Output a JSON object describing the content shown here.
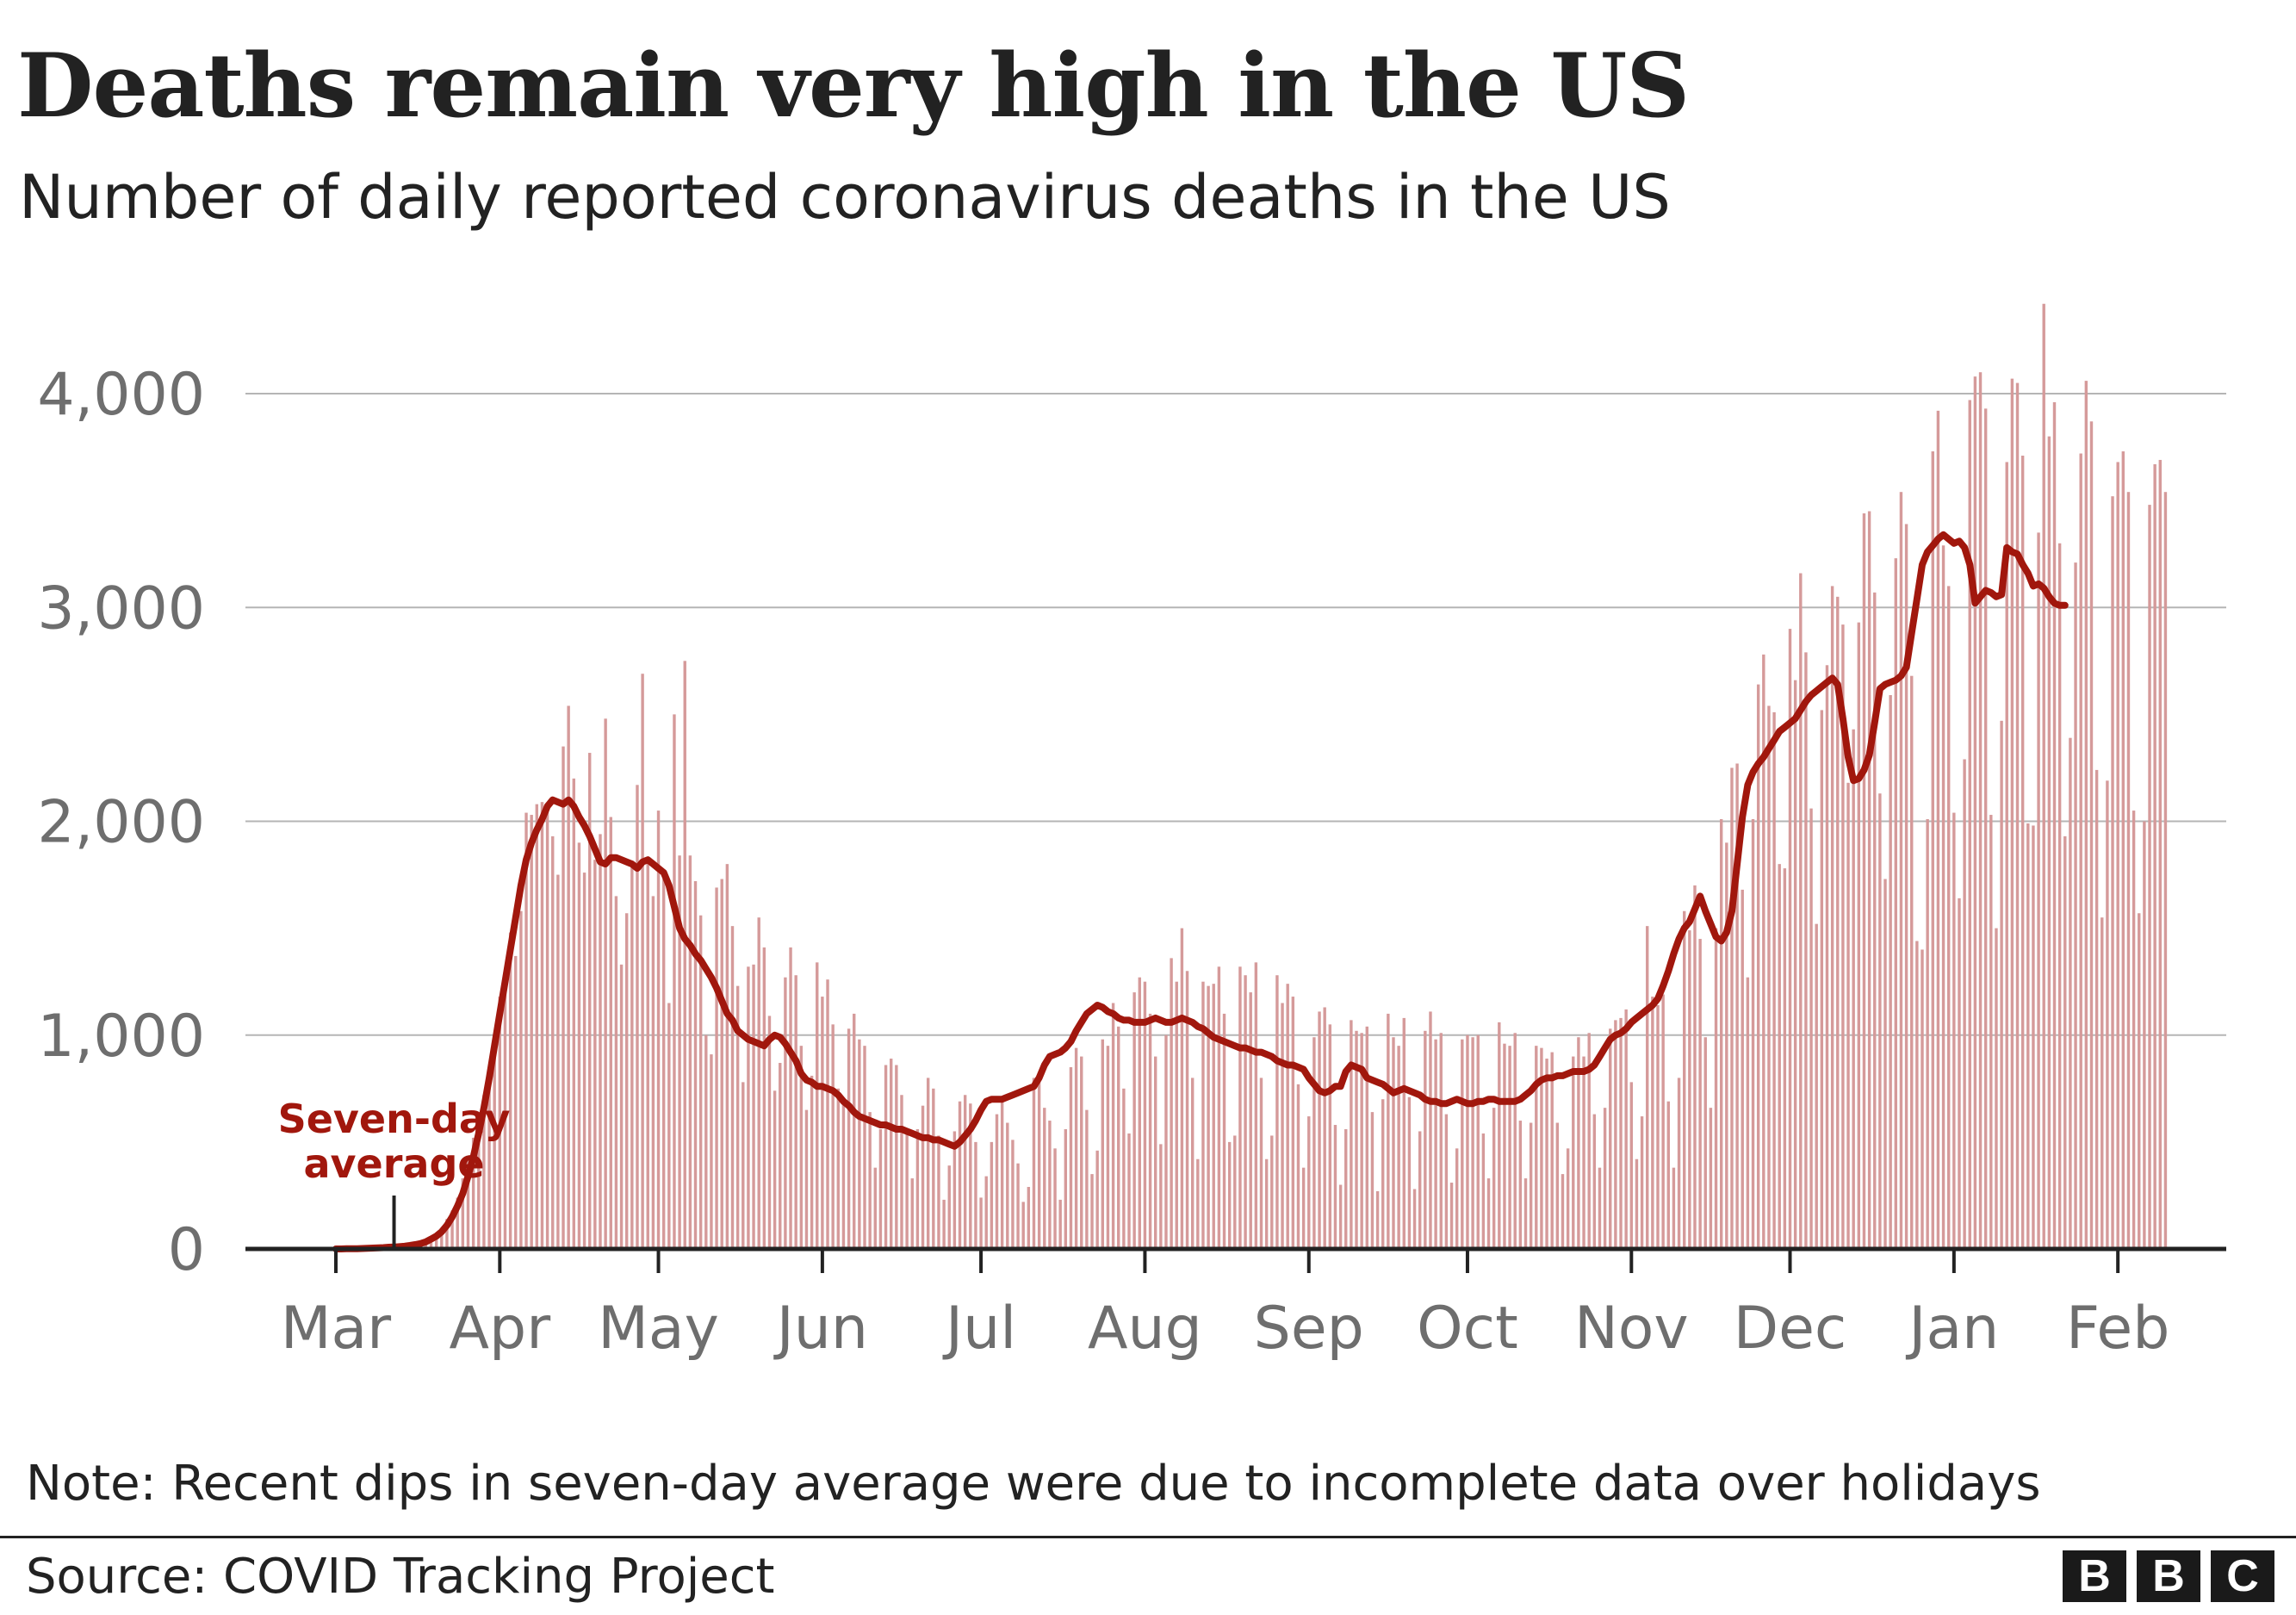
{
  "title": "Deaths remain very high in the US",
  "subtitle": "Number of daily reported coronavirus deaths in the US",
  "note": "Note: Recent dips in seven-day average were due to incomplete data over holidays",
  "source": "Source: COVID Tracking Project",
  "logo": {
    "letters": [
      "B",
      "B",
      "C"
    ]
  },
  "colors": {
    "bar": "#d59a9a",
    "average_line": "#a1170d",
    "grid": "#b5b5b5",
    "axis": "#222222",
    "tick_label": "#6e6e6e",
    "annotation": "#a1170d"
  },
  "chart_data": {
    "type": "bar",
    "title": "Deaths remain very high in the US",
    "subtitle": "Number of daily reported coronavirus deaths in the US",
    "x_tick_labels": [
      "Mar",
      "Apr",
      "May",
      "Jun",
      "Jul",
      "Aug",
      "Sep",
      "Oct",
      "Nov",
      "Dec",
      "Jan",
      "Feb"
    ],
    "y_ticks": [
      0,
      1000,
      2000,
      3000,
      4000
    ],
    "y_tick_labels": [
      "0",
      "1,000",
      "2,000",
      "3,000",
      "4,000"
    ],
    "ylim": [
      0,
      4500
    ],
    "grid": true,
    "x_start": "2020-03-01",
    "annotation": {
      "text_lines": [
        "Seven-day",
        "average"
      ],
      "date": "2020-03-12"
    },
    "daily_deaths_series": {
      "name": "Daily reported deaths",
      "start_date": "2020-03-01",
      "daily_values": [
        0,
        0,
        1,
        1,
        2,
        2,
        3,
        4,
        5,
        6,
        8,
        9,
        11,
        13,
        16,
        20,
        25,
        33,
        46,
        70,
        95,
        140,
        180,
        240,
        330,
        430,
        520,
        630,
        720,
        820,
        900,
        1180,
        1290,
        1480,
        1370,
        1580,
        2040,
        2030,
        2080,
        2090,
        2060,
        1930,
        1750,
        2350,
        2540,
        2200,
        1900,
        1760,
        2320,
        1820,
        1940,
        2480,
        2020,
        1650,
        1330,
        1570,
        1800,
        2170,
        2690,
        1820,
        1650,
        2050,
        1730,
        1150,
        2500,
        1840,
        2750,
        1840,
        1720,
        1560,
        1000,
        910,
        1690,
        1730,
        1800,
        1510,
        1230,
        780,
        1320,
        1330,
        1550,
        1410,
        1090,
        740,
        870,
        1270,
        1410,
        1280,
        950,
        650,
        810,
        1340,
        1180,
        1260,
        1050,
        750,
        680,
        1030,
        1100,
        980,
        950,
        640,
        380,
        560,
        860,
        890,
        860,
        720,
        560,
        330,
        560,
        670,
        800,
        750,
        530,
        230,
        390,
        550,
        690,
        720,
        680,
        500,
        240,
        340,
        500,
        630,
        690,
        590,
        510,
        400,
        220,
        290,
        800,
        810,
        660,
        600,
        470,
        230,
        560,
        850,
        940,
        900,
        650,
        350,
        460,
        980,
        950,
        1150,
        1040,
        750,
        540,
        1200,
        1270,
        1250,
        1100,
        900,
        490,
        1000,
        1360,
        1250,
        1500,
        1300,
        800,
        420,
        1250,
        1230,
        1240,
        1320,
        1100,
        500,
        530,
        1320,
        1280,
        1200,
        1340,
        800,
        420,
        530,
        1280,
        1150,
        1240,
        1180,
        770,
        380,
        620,
        990,
        1110,
        1130,
        1050,
        580,
        300,
        560,
        1070,
        1020,
        1010,
        1040,
        640,
        270,
        700,
        1100,
        990,
        950,
        1080,
        710,
        280,
        550,
        1020,
        1110,
        980,
        1010,
        630,
        310,
        470,
        980,
        1000,
        990,
        1000,
        540,
        330,
        660,
        1060,
        960,
        950,
        1010,
        600,
        330,
        590,
        950,
        940,
        890,
        920,
        590,
        350,
        470,
        900,
        990,
        900,
        1010,
        630,
        380,
        660,
        1030,
        1070,
        1080,
        1120,
        780,
        420,
        620,
        1510,
        1180,
        1140,
        1190,
        690,
        380,
        800,
        1580,
        1490,
        1700,
        1450,
        990,
        660,
        1500,
        2010,
        1900,
        2250,
        2270,
        1680,
        1270,
        2010,
        2640,
        2780,
        2540,
        2510,
        1800,
        1780,
        2900,
        2660,
        3160,
        2790,
        2060,
        1520,
        2520,
        2730,
        3100,
        3050,
        2920,
        2180,
        2430,
        2930,
        3440,
        3450,
        3070,
        2130,
        1730,
        2590,
        3230,
        3540,
        3390,
        2680,
        1440,
        1400,
        2010,
        3730,
        3920,
        3290,
        3100,
        2040,
        1640,
        2290,
        3970,
        4080,
        4100,
        3930,
        2030,
        1500,
        2470,
        3680,
        4070,
        4050,
        3710,
        1990,
        1980,
        3350,
        4420,
        3800,
        3960,
        3300,
        1930,
        2390,
        3210,
        3720,
        4060,
        3870,
        2240,
        1550,
        2190,
        3520,
        3680,
        3730,
        3540,
        2050,
        1570,
        2000,
        3480,
        3670,
        3690,
        3540
      ]
    },
    "seven_day_average_series": {
      "name": "Seven-day average",
      "start_date": "2020-03-01",
      "daily_values": [
        0,
        0,
        1,
        1,
        1,
        2,
        3,
        4,
        5,
        6,
        8,
        9,
        11,
        13,
        16,
        20,
        25,
        33,
        46,
        60,
        80,
        110,
        150,
        200,
        260,
        340,
        430,
        540,
        660,
        800,
        950,
        1100,
        1250,
        1400,
        1550,
        1700,
        1820,
        1900,
        1960,
        2010,
        2070,
        2100,
        2090,
        2080,
        2100,
        2070,
        2020,
        1980,
        1930,
        1870,
        1810,
        1800,
        1830,
        1830,
        1820,
        1810,
        1800,
        1780,
        1810,
        1820,
        1800,
        1780,
        1760,
        1700,
        1600,
        1500,
        1450,
        1420,
        1380,
        1350,
        1310,
        1270,
        1220,
        1160,
        1100,
        1070,
        1020,
        1000,
        980,
        970,
        960,
        950,
        980,
        1000,
        990,
        960,
        920,
        880,
        820,
        790,
        780,
        760,
        760,
        750,
        740,
        720,
        690,
        670,
        640,
        620,
        610,
        600,
        590,
        580,
        580,
        570,
        560,
        560,
        550,
        540,
        530,
        520,
        520,
        510,
        510,
        500,
        490,
        480,
        500,
        530,
        560,
        600,
        650,
        690,
        700,
        700,
        700,
        710,
        720,
        730,
        740,
        750,
        760,
        800,
        860,
        900,
        910,
        920,
        940,
        970,
        1020,
        1060,
        1100,
        1120,
        1140,
        1130,
        1110,
        1100,
        1080,
        1070,
        1070,
        1060,
        1060,
        1060,
        1070,
        1080,
        1070,
        1060,
        1060,
        1070,
        1080,
        1070,
        1060,
        1040,
        1030,
        1010,
        990,
        980,
        970,
        960,
        950,
        940,
        940,
        930,
        920,
        920,
        910,
        900,
        880,
        870,
        860,
        860,
        850,
        840,
        800,
        770,
        740,
        730,
        740,
        760,
        760,
        830,
        860,
        850,
        840,
        800,
        790,
        780,
        770,
        750,
        730,
        740,
        750,
        740,
        730,
        720,
        700,
        690,
        690,
        680,
        680,
        690,
        700,
        690,
        680,
        680,
        690,
        690,
        700,
        700,
        690,
        690,
        690,
        690,
        700,
        720,
        740,
        770,
        790,
        800,
        800,
        810,
        810,
        820,
        830,
        830,
        830,
        840,
        860,
        900,
        940,
        980,
        1000,
        1010,
        1030,
        1060,
        1080,
        1100,
        1120,
        1140,
        1170,
        1230,
        1300,
        1380,
        1450,
        1500,
        1530,
        1590,
        1650,
        1580,
        1520,
        1460,
        1440,
        1480,
        1580,
        1800,
        2020,
        2170,
        2230,
        2270,
        2300,
        2340,
        2380,
        2420,
        2440,
        2460,
        2480,
        2520,
        2560,
        2590,
        2610,
        2630,
        2650,
        2670,
        2640,
        2480,
        2300,
        2190,
        2200,
        2240,
        2310,
        2460,
        2620,
        2640,
        2650,
        2660,
        2680,
        2720,
        2880,
        3040,
        3200,
        3260,
        3290,
        3320,
        3340,
        3320,
        3300,
        3310,
        3280,
        3200,
        3020,
        3050,
        3080,
        3070,
        3050,
        3060,
        3280,
        3260,
        3250,
        3200,
        3160,
        3100,
        3110,
        3090,
        3050,
        3020,
        3010,
        3010
      ]
    }
  }
}
